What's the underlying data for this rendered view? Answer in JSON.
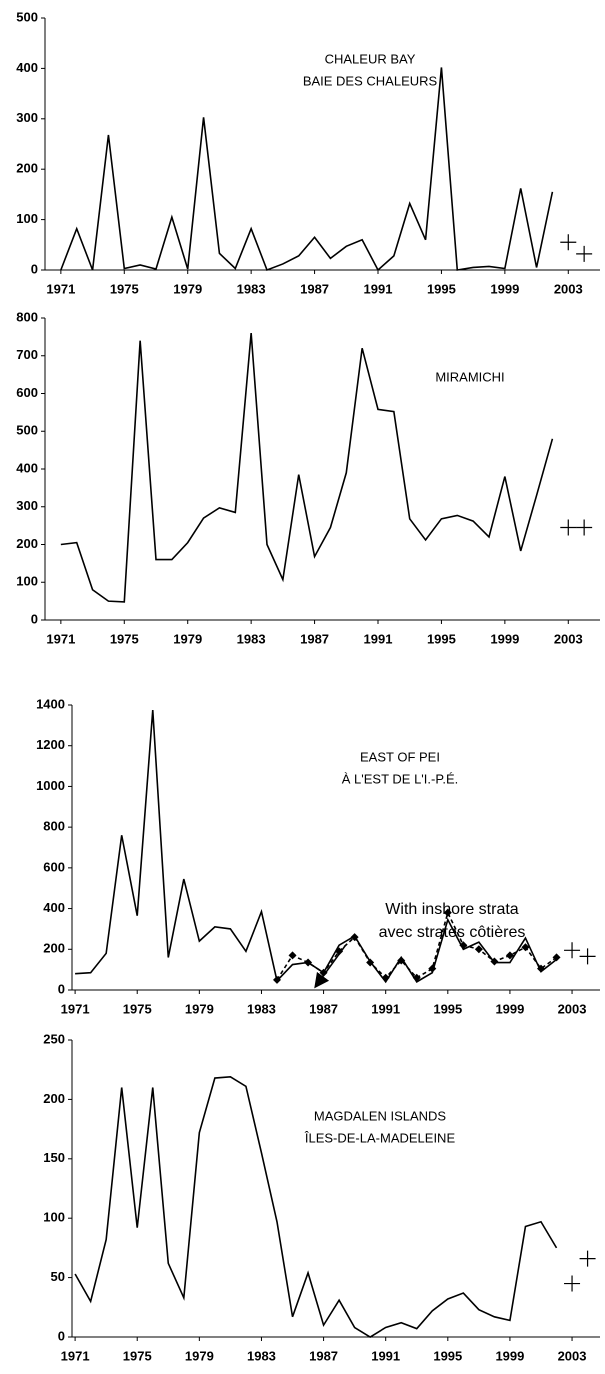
{
  "chart_data": [
    {
      "type": "line",
      "title": [
        "CHALEUR BAY",
        "BAIE DES CHALEURS"
      ],
      "xlim": [
        1970,
        2005
      ],
      "xticks": [
        1971,
        1975,
        1979,
        1983,
        1987,
        1991,
        1995,
        1999,
        2003
      ],
      "ylim": [
        0,
        500
      ],
      "yticks": [
        0,
        100,
        200,
        300,
        400,
        500
      ],
      "series": [
        {
          "style": "solid",
          "color": "#000000",
          "x": [
            1971,
            1972,
            1973,
            1974,
            1975,
            1976,
            1977,
            1978,
            1979,
            1980,
            1981,
            1982,
            1983,
            1984,
            1985,
            1986,
            1987,
            1988,
            1989,
            1990,
            1991,
            1992,
            1993,
            1994,
            1995,
            1996,
            1997,
            1998,
            1999,
            2000,
            2001,
            2002
          ],
          "values": [
            0,
            82,
            0,
            268,
            3,
            10,
            2,
            105,
            2,
            303,
            33,
            3,
            82,
            0,
            12,
            28,
            65,
            23,
            47,
            60,
            0,
            28,
            132,
            60,
            402,
            0,
            5,
            7,
            3,
            162,
            5,
            155
          ]
        },
        {
          "style": "plus",
          "color": "#000000",
          "x": [
            2003,
            2004
          ],
          "values": [
            55,
            32
          ]
        }
      ]
    },
    {
      "type": "line",
      "title": [
        "MIRAMICHI"
      ],
      "xlim": [
        1970,
        2005
      ],
      "xticks": [
        1971,
        1975,
        1979,
        1983,
        1987,
        1991,
        1995,
        1999,
        2003
      ],
      "ylim": [
        0,
        800
      ],
      "yticks": [
        0,
        100,
        200,
        300,
        400,
        500,
        600,
        700,
        800
      ],
      "series": [
        {
          "style": "solid",
          "color": "#000000",
          "x": [
            1971,
            1972,
            1973,
            1974,
            1975,
            1976,
            1977,
            1978,
            1979,
            1980,
            1981,
            1982,
            1983,
            1984,
            1985,
            1986,
            1987,
            1988,
            1989,
            1990,
            1991,
            1992,
            1993,
            1994,
            1995,
            1996,
            1997,
            1998,
            1999,
            2000,
            2001,
            2002
          ],
          "values": [
            200,
            205,
            80,
            50,
            48,
            740,
            160,
            160,
            205,
            270,
            297,
            285,
            760,
            200,
            107,
            385,
            168,
            245,
            390,
            720,
            558,
            552,
            268,
            212,
            268,
            277,
            262,
            220,
            380,
            183,
            330,
            480
          ]
        },
        {
          "style": "plus",
          "color": "#000000",
          "x": [
            2003,
            2004
          ],
          "values": [
            245,
            245
          ]
        }
      ]
    },
    {
      "type": "line",
      "title": [
        "EAST OF PEI",
        "À L'EST DE L'I.-P.É."
      ],
      "annotation": [
        "With inshore strata",
        "avec strates côtières"
      ],
      "xlim": [
        1970.8,
        2004.8
      ],
      "xticks": [
        1971,
        1975,
        1979,
        1983,
        1987,
        1991,
        1995,
        1999,
        2003
      ],
      "ylim": [
        0,
        1400
      ],
      "yticks": [
        0,
        200,
        400,
        600,
        800,
        1000,
        1200,
        1400
      ],
      "series": [
        {
          "style": "solid",
          "color": "#000000",
          "x": [
            1971,
            1972,
            1973,
            1974,
            1975,
            1976,
            1977,
            1978,
            1979,
            1980,
            1981,
            1982,
            1983,
            1984,
            1985,
            1986,
            1987,
            1988,
            1989,
            1990,
            1991,
            1992,
            1993,
            1994,
            1995,
            1996,
            1997,
            1998,
            1999,
            2000,
            2001,
            2002
          ],
          "values": [
            80,
            85,
            180,
            760,
            365,
            1375,
            160,
            545,
            240,
            310,
            300,
            190,
            385,
            45,
            125,
            135,
            85,
            220,
            265,
            140,
            40,
            160,
            40,
            85,
            345,
            200,
            235,
            135,
            135,
            255,
            90,
            150
          ]
        },
        {
          "style": "dashed-diamond",
          "color": "#000000",
          "x": [
            1984,
            1985,
            1986,
            1987,
            1988,
            1989,
            1990,
            1991,
            1992,
            1993,
            1994,
            1995,
            1996,
            1997,
            1998,
            1999,
            2000,
            2001,
            2002
          ],
          "values": [
            50,
            170,
            135,
            85,
            190,
            260,
            135,
            60,
            145,
            60,
            105,
            380,
            220,
            200,
            140,
            170,
            210,
            105,
            160
          ]
        },
        {
          "style": "plus",
          "color": "#000000",
          "x": [
            2003,
            2004
          ],
          "values": [
            195,
            165
          ]
        }
      ]
    },
    {
      "type": "line",
      "title": [
        "MAGDALEN ISLANDS",
        "ÎLES-DE-LA-MADELEINE"
      ],
      "xlim": [
        1970.8,
        2004.8
      ],
      "xticks": [
        1971,
        1975,
        1979,
        1983,
        1987,
        1991,
        1995,
        1999,
        2003
      ],
      "ylim": [
        0,
        250
      ],
      "yticks": [
        0,
        50,
        100,
        150,
        200,
        250
      ],
      "series": [
        {
          "style": "solid",
          "color": "#000000",
          "x": [
            1971,
            1972,
            1973,
            1974,
            1975,
            1976,
            1977,
            1978,
            1979,
            1980,
            1981,
            1982,
            1983,
            1984,
            1985,
            1986,
            1987,
            1988,
            1989,
            1990,
            1991,
            1992,
            1993,
            1994,
            1995,
            1996,
            1997,
            1998,
            1999,
            2000,
            2001,
            2002
          ],
          "values": [
            53,
            30,
            82,
            210,
            92,
            210,
            62,
            33,
            172,
            218,
            219,
            211,
            155,
            97,
            17,
            54,
            10,
            31,
            8,
            0,
            8,
            12,
            7,
            22,
            32,
            37,
            23,
            17,
            14,
            93,
            97,
            75
          ]
        },
        {
          "style": "plus",
          "color": "#000000",
          "x": [
            2003,
            2004
          ],
          "values": [
            45,
            66
          ]
        }
      ]
    }
  ]
}
